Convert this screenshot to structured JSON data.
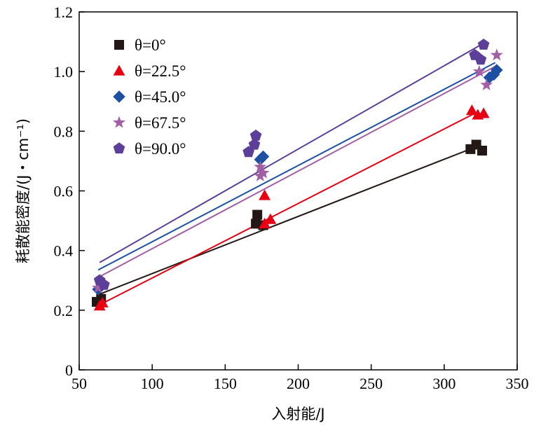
{
  "chart_data": {
    "type": "scatter",
    "xlabel": "入射能/J",
    "ylabel": "耗散能密度/(J・cm⁻¹)",
    "xlim": [
      50,
      350
    ],
    "ylim": [
      0,
      1.2
    ],
    "x_ticks": [
      "50",
      "100",
      "150",
      "200",
      "250",
      "300",
      "350"
    ],
    "y_ticks": [
      "0",
      "0.2",
      "0.4",
      "0.6",
      "0.8",
      "1.0",
      "1.2"
    ],
    "legend_position": "top-left",
    "series": [
      {
        "name": "θ=0°",
        "color": "#231815",
        "marker": "square",
        "points": [
          [
            62,
            0.228
          ],
          [
            65,
            0.238
          ],
          [
            172,
            0.52
          ],
          [
            171,
            0.49
          ],
          [
            176,
            0.485
          ],
          [
            318,
            0.74
          ],
          [
            322,
            0.755
          ],
          [
            326,
            0.735
          ]
        ],
        "fit": [
          [
            62,
            0.25
          ],
          [
            324,
            0.752
          ]
        ]
      },
      {
        "name": "θ=22.5°",
        "color": "#e60012",
        "marker": "triangle",
        "points": [
          [
            64,
            0.215
          ],
          [
            66,
            0.225
          ],
          [
            177,
            0.49
          ],
          [
            181,
            0.505
          ],
          [
            177,
            0.585
          ],
          [
            319,
            0.87
          ],
          [
            323,
            0.855
          ],
          [
            327,
            0.86
          ]
        ],
        "fit": [
          [
            64,
            0.218
          ],
          [
            323,
            0.865
          ]
        ]
      },
      {
        "name": "θ=45.0°",
        "color": "#1d50a2",
        "marker": "diamond",
        "points": [
          [
            63,
            0.27
          ],
          [
            66,
            0.29
          ],
          [
            174,
            0.705
          ],
          [
            176,
            0.715
          ],
          [
            331,
            0.98
          ],
          [
            334,
            0.99
          ],
          [
            336,
            1.005
          ]
        ],
        "fit": [
          [
            63,
            0.335
          ],
          [
            335,
            1.03
          ]
        ]
      },
      {
        "name": "θ=67.5°",
        "color": "#a35fa4",
        "marker": "star",
        "points": [
          [
            63,
            0.275
          ],
          [
            65,
            0.29
          ],
          [
            174,
            0.65
          ],
          [
            176,
            0.66
          ],
          [
            174,
            0.68
          ],
          [
            324,
            1.0
          ],
          [
            329,
            0.955
          ],
          [
            336,
            1.055
          ]
        ],
        "fit": [
          [
            63,
            0.31
          ],
          [
            336,
            1.02
          ]
        ]
      },
      {
        "name": "θ=90.0°",
        "color": "#5b3f99",
        "marker": "pentagon",
        "points": [
          [
            64,
            0.3
          ],
          [
            67,
            0.285
          ],
          [
            166,
            0.73
          ],
          [
            170,
            0.755
          ],
          [
            171,
            0.785
          ],
          [
            321,
            1.055
          ],
          [
            325,
            1.04
          ],
          [
            327,
            1.09
          ]
        ],
        "fit": [
          [
            64,
            0.36
          ],
          [
            327,
            1.095
          ]
        ]
      }
    ]
  }
}
